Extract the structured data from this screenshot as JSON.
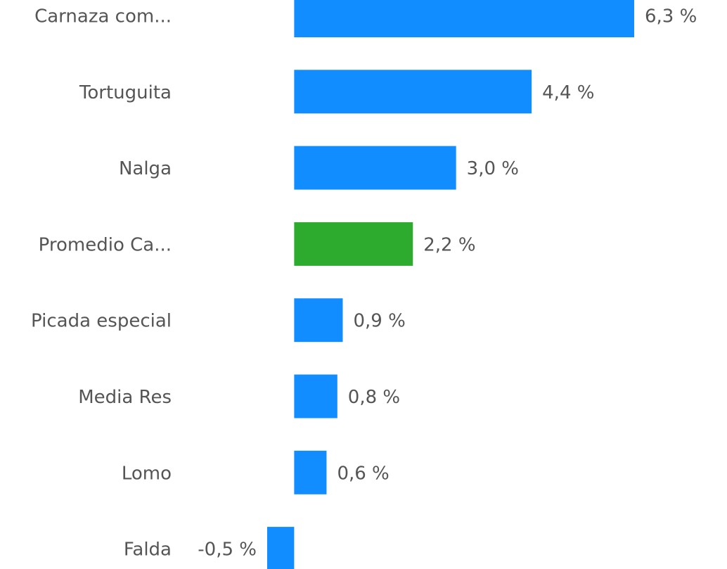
{
  "chart_data": {
    "type": "bar",
    "orientation": "horizontal",
    "categories": [
      "Carnaza com...",
      "Tortuguita",
      "Nalga",
      "Promedio Ca...",
      "Picada especial",
      "Media Res",
      "Lomo",
      "Falda"
    ],
    "values": [
      6.3,
      4.4,
      3.0,
      2.2,
      0.9,
      0.8,
      0.6,
      -0.5
    ],
    "value_labels": [
      "6,3 %",
      "4,4 %",
      "3,0 %",
      "2,2 %",
      "0,9 %",
      "0,8 %",
      "0,6 %",
      "-0,5 %"
    ],
    "colors": [
      "#118DFF",
      "#118DFF",
      "#118DFF",
      "#2CAB2E",
      "#118DFF",
      "#118DFF",
      "#118DFF",
      "#118DFF"
    ]
  }
}
